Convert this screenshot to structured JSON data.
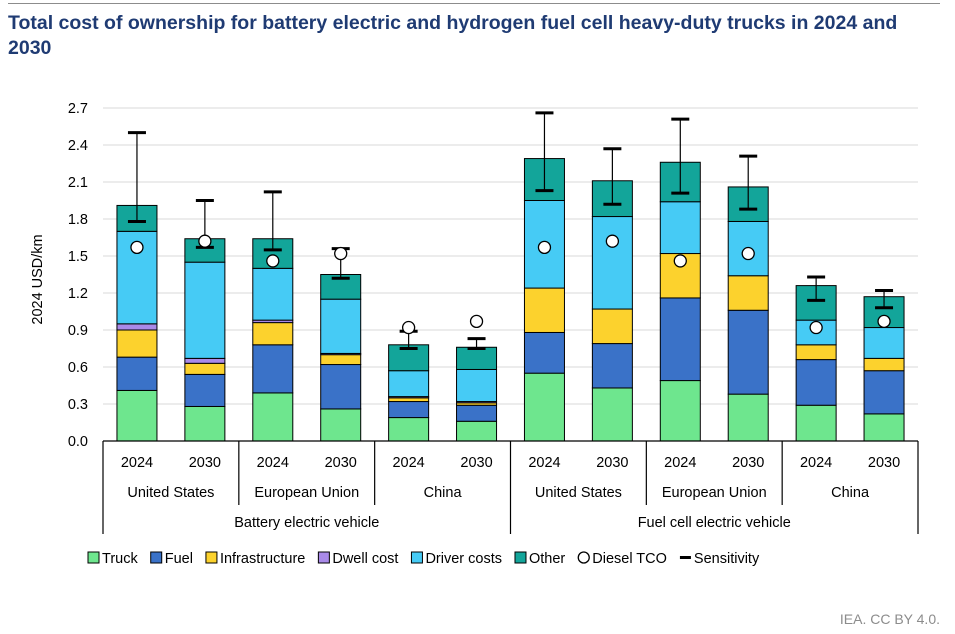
{
  "title": "Total cost of ownership for battery electric and hydrogen fuel cell heavy-duty trucks in 2024 and 2030",
  "source": "IEA. CC BY 4.0.",
  "colors": {
    "Truck": "#6ee68e",
    "Fuel": "#3a72c8",
    "Infrastructure": "#fcd22d",
    "Dwell cost": "#a98ae8",
    "Driver costs": "#46cbf5",
    "Other": "#13a59a"
  },
  "chart_data": {
    "type": "bar",
    "stacked": true,
    "ylabel": "2024 USD/km",
    "ylim": [
      0,
      2.7
    ],
    "yticks": [
      0.0,
      0.3,
      0.6,
      0.9,
      1.2,
      1.5,
      1.8,
      2.1,
      2.4,
      2.7
    ],
    "ytick_labels": [
      "0.0",
      "0.3",
      "0.6",
      "0.9",
      "1.2",
      "1.5",
      "1.8",
      "2.1",
      "2.4",
      "2.7"
    ],
    "grid": true,
    "categories": [
      "2024",
      "2030",
      "2024",
      "2030",
      "2024",
      "2030",
      "2024",
      "2030",
      "2024",
      "2030",
      "2024",
      "2030"
    ],
    "regions": [
      "United States",
      "European Union",
      "China",
      "United States",
      "European Union",
      "China"
    ],
    "vehicle_types": [
      "Battery electric vehicle",
      "Fuel cell electric vehicle"
    ],
    "series": [
      {
        "name": "Truck",
        "values": [
          0.41,
          0.28,
          0.39,
          0.26,
          0.19,
          0.16,
          0.55,
          0.43,
          0.49,
          0.38,
          0.29,
          0.22
        ]
      },
      {
        "name": "Fuel",
        "values": [
          0.27,
          0.26,
          0.39,
          0.36,
          0.13,
          0.13,
          0.33,
          0.36,
          0.67,
          0.68,
          0.37,
          0.35
        ]
      },
      {
        "name": "Infrastructure",
        "values": [
          0.22,
          0.09,
          0.18,
          0.08,
          0.03,
          0.02,
          0.36,
          0.28,
          0.36,
          0.28,
          0.12,
          0.1
        ]
      },
      {
        "name": "Dwell cost",
        "values": [
          0.05,
          0.04,
          0.02,
          0.01,
          0.01,
          0.01,
          0.0,
          0.0,
          0.0,
          0.0,
          0.0,
          0.0
        ]
      },
      {
        "name": "Driver costs",
        "values": [
          0.75,
          0.78,
          0.42,
          0.44,
          0.21,
          0.26,
          0.71,
          0.75,
          0.42,
          0.44,
          0.2,
          0.25
        ]
      },
      {
        "name": "Other",
        "values": [
          0.21,
          0.19,
          0.24,
          0.2,
          0.21,
          0.18,
          0.34,
          0.29,
          0.32,
          0.28,
          0.28,
          0.25
        ]
      }
    ],
    "diesel_tco": [
      1.57,
      1.62,
      1.46,
      1.52,
      0.92,
      0.97,
      1.57,
      1.62,
      1.46,
      1.52,
      0.92,
      0.97
    ],
    "sensitivity_low": [
      1.78,
      1.57,
      1.55,
      1.32,
      0.75,
      0.75,
      2.03,
      1.92,
      2.01,
      1.88,
      1.14,
      1.08
    ],
    "sensitivity_high": [
      2.5,
      1.95,
      2.02,
      1.56,
      0.89,
      0.83,
      2.66,
      2.37,
      2.61,
      2.31,
      1.33,
      1.22
    ],
    "legend": [
      "Truck",
      "Fuel",
      "Infrastructure",
      "Dwell cost",
      "Driver costs",
      "Other",
      "Diesel TCO",
      "Sensitivity"
    ],
    "legend_position": "bottom"
  }
}
